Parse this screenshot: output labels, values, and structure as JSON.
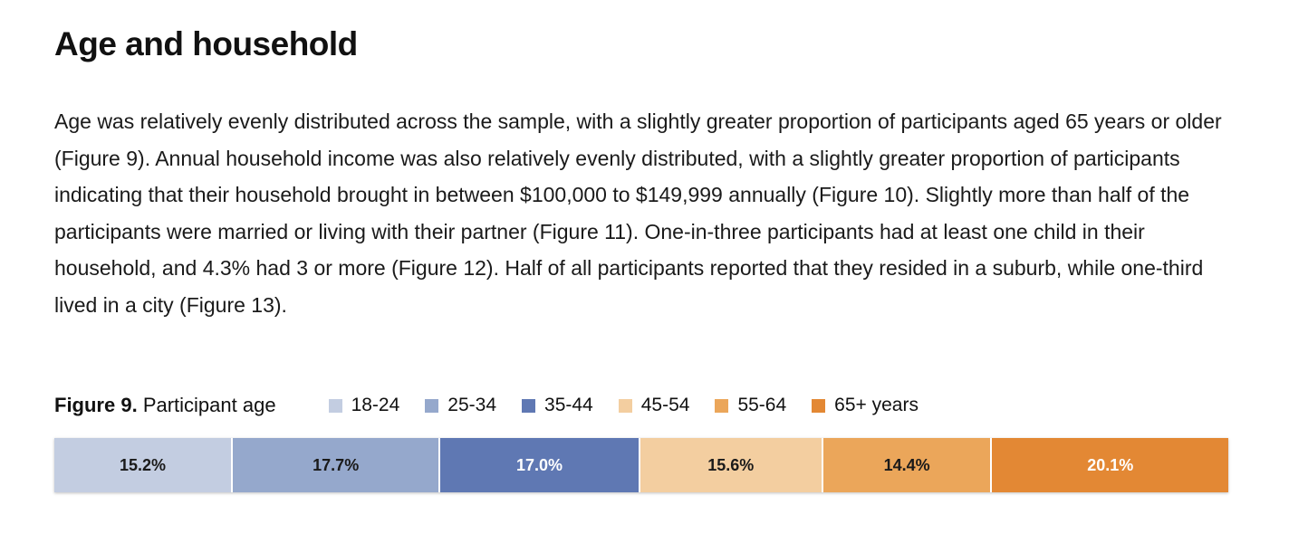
{
  "heading": "Age and household",
  "paragraph": "Age was relatively evenly distributed across the sample, with a slightly greater proportion of participants aged 65 years or older (Figure 9). Annual household income was also relatively evenly distributed, with a slightly greater proportion of participants indicating that their household brought in between $100,000 to $149,999 annually (Figure 10). Slightly more than half of the participants were married or living with their partner (Figure 11). One-in-three participants had at least one child in their household, and 4.3% had 3 or more (Figure 12). Half of all participants reported that they resided in a suburb, while one-third lived in a city (Figure 13).",
  "figure": {
    "number": "Figure 9.",
    "title": "Participant age"
  },
  "chart_data": {
    "type": "bar",
    "orientation": "horizontal-stacked",
    "title": "Figure 9. Participant age",
    "categories": [
      "18-24",
      "25-34",
      "35-44",
      "45-54",
      "55-64",
      "65+ years"
    ],
    "values": [
      15.2,
      17.7,
      17.0,
      15.6,
      14.4,
      20.1
    ],
    "labels": [
      "15.2%",
      "17.7%",
      "17.0%",
      "15.6%",
      "14.4%",
      "20.1%"
    ],
    "colors": [
      "#c3cde1",
      "#95a8cc",
      "#5f78b3",
      "#f3cea0",
      "#eba65a",
      "#e38834"
    ],
    "label_colors": [
      "#1a1a1a",
      "#1a1a1a",
      "#ffffff",
      "#1a1a1a",
      "#1a1a1a",
      "#ffffff"
    ],
    "legend_position": "top",
    "grid": false
  }
}
